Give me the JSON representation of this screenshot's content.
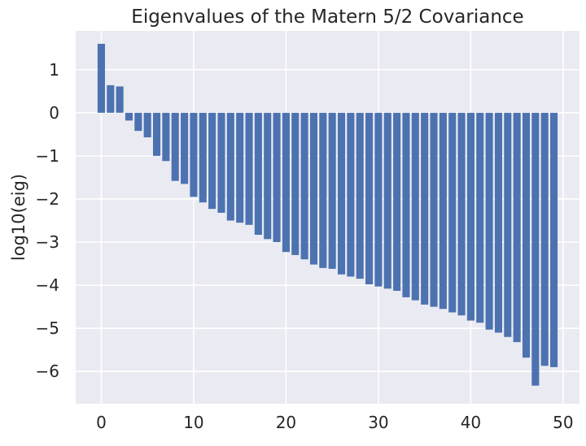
{
  "chart_data": {
    "type": "bar",
    "title": "Eigenvalues of the Matern 5/2 Covariance",
    "xlabel": "",
    "ylabel": "log10(eig)",
    "xlim": [
      -2.77,
      51.77
    ],
    "ylim": [
      -6.75,
      1.9
    ],
    "xticks": [
      0,
      10,
      20,
      30,
      40,
      50
    ],
    "yticks": [
      1,
      0,
      -1,
      -2,
      -3,
      -4,
      -5,
      -6
    ],
    "grid": true,
    "legend": "none",
    "bar_color": "#4c72b0",
    "background_color": "#eaeaf2",
    "x": [
      0,
      1,
      2,
      3,
      4,
      5,
      6,
      7,
      8,
      9,
      10,
      11,
      12,
      13,
      14,
      15,
      16,
      17,
      18,
      19,
      20,
      21,
      22,
      23,
      24,
      25,
      26,
      27,
      28,
      29,
      30,
      31,
      32,
      33,
      34,
      35,
      36,
      37,
      38,
      39,
      40,
      41,
      42,
      43,
      44,
      45,
      46,
      47,
      48,
      49
    ],
    "values": [
      1.6,
      0.64,
      0.61,
      -0.18,
      -0.42,
      -0.57,
      -1.0,
      -1.12,
      -1.58,
      -1.65,
      -1.95,
      -2.08,
      -2.23,
      -2.32,
      -2.5,
      -2.55,
      -2.6,
      -2.83,
      -2.93,
      -3.0,
      -3.23,
      -3.3,
      -3.4,
      -3.52,
      -3.6,
      -3.62,
      -3.75,
      -3.8,
      -3.85,
      -3.98,
      -4.03,
      -4.08,
      -4.13,
      -4.28,
      -4.35,
      -4.45,
      -4.5,
      -4.55,
      -4.63,
      -4.7,
      -4.82,
      -4.87,
      -5.03,
      -5.1,
      -5.2,
      -5.32,
      -5.68,
      -6.33,
      -5.87,
      -5.9
    ]
  }
}
